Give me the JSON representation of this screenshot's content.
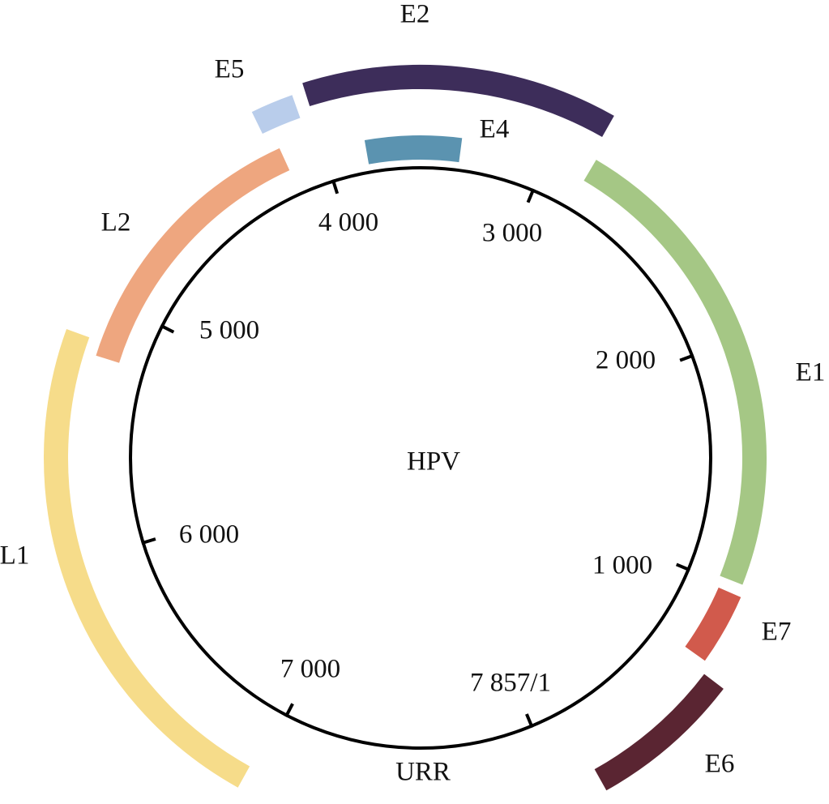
{
  "center_label": "HPV",
  "region_label": "URR",
  "ticks": [
    "1 000",
    "2 000",
    "3 000",
    "4 000",
    "5 000",
    "6 000",
    "7 000",
    "7 857/1"
  ],
  "genes": [
    {
      "label": "E1"
    },
    {
      "label": "E2"
    },
    {
      "label": "E4"
    },
    {
      "label": "E5"
    },
    {
      "label": "E6"
    },
    {
      "label": "E7"
    },
    {
      "label": "L1"
    },
    {
      "label": "L2"
    }
  ]
}
